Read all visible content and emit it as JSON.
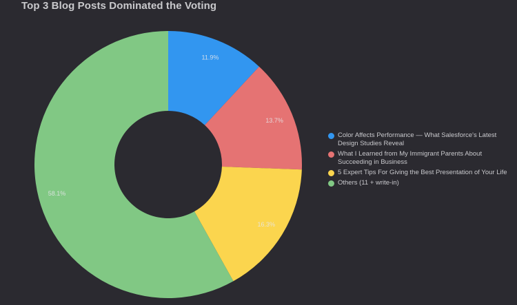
{
  "title": "Top 3 Blog Posts Dominated the Voting",
  "chart_data": {
    "type": "pie",
    "subtype": "donut",
    "title": "Top 3 Blog Posts Dominated the Voting",
    "categories": [
      "Color Affects Performance — What Salesforce's Latest Design Studies Reveal",
      "What I Learned from My Immigrant Parents About Succeeding in Business",
      "5 Expert Tips For Giving the Best Presentation of Your Life",
      "Others (11 + write-in)"
    ],
    "values": [
      11.9,
      13.7,
      16.3,
      58.1
    ],
    "labels": [
      "11.9%",
      "13.7%",
      "16.3%",
      "58.1%"
    ],
    "colors": [
      "#3296f0",
      "#e57373",
      "#fbd54e",
      "#81c884"
    ],
    "legend_position": "right",
    "start_angle_deg": 0,
    "direction": "clockwise"
  },
  "legend": {
    "items": [
      {
        "label": "Color Affects Performance — What Salesforce's Latest Design Studies Reveal",
        "color": "#3296f0"
      },
      {
        "label": "What I Learned from My Immigrant Parents About Succeeding in Business",
        "color": "#e57373"
      },
      {
        "label": "5 Expert Tips For Giving the Best Presentation of Your Life",
        "color": "#fbd54e"
      },
      {
        "label": "Others (11 + write-in)",
        "color": "#81c884"
      }
    ]
  },
  "colors": {
    "background": "#2b2a30",
    "title": "#c9c9cc",
    "legend_text": "#c8c8cc"
  }
}
